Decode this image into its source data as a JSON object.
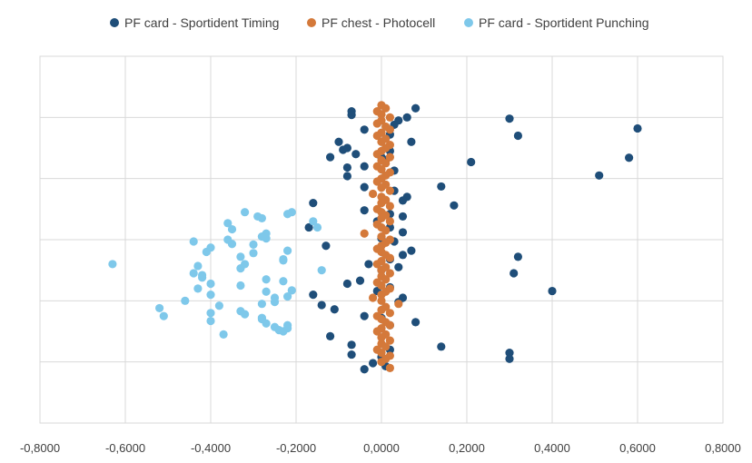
{
  "chart_data": {
    "type": "scatter",
    "xlim": [
      -0.8,
      0.8
    ],
    "ylim": [
      0,
      6
    ],
    "x_ticks": [
      "-0,8000",
      "-0,6000",
      "-0,4000",
      "-0,2000",
      "0,0000",
      "0,2000",
      "0,4000",
      "0,6000",
      "0,8000"
    ],
    "x_tick_values": [
      -0.8,
      -0.6,
      -0.4,
      -0.2,
      0.0,
      0.2,
      0.4,
      0.6,
      0.8
    ],
    "y_grid_values": [
      1,
      2,
      3,
      4,
      5,
      6
    ],
    "show_y_tick_labels": false,
    "grid": true,
    "legend_position": "top",
    "series": [
      {
        "name": "PF card - Sportident Timing",
        "color": "#1f4e79",
        "points": [
          [
            -0.07,
            5.1
          ],
          [
            -0.07,
            5.04
          ],
          [
            0.08,
            5.15
          ],
          [
            0.04,
            4.95
          ],
          [
            0.03,
            4.88
          ],
          [
            0.06,
            5.0
          ],
          [
            0.3,
            4.98
          ],
          [
            0.6,
            4.82
          ],
          [
            0.32,
            4.7
          ],
          [
            -0.04,
            4.8
          ],
          [
            0.02,
            4.72
          ],
          [
            0.07,
            4.6
          ],
          [
            -0.1,
            4.6
          ],
          [
            -0.08,
            4.5
          ],
          [
            -0.09,
            4.47
          ],
          [
            0.02,
            4.45
          ],
          [
            -0.06,
            4.4
          ],
          [
            -0.12,
            4.35
          ],
          [
            0.0,
            4.35
          ],
          [
            0.01,
            4.3
          ],
          [
            0.21,
            4.27
          ],
          [
            0.58,
            4.34
          ],
          [
            -0.04,
            4.2
          ],
          [
            -0.08,
            4.18
          ],
          [
            0.03,
            4.13
          ],
          [
            -0.08,
            4.04
          ],
          [
            0.51,
            4.05
          ],
          [
            0.14,
            3.87
          ],
          [
            -0.04,
            3.86
          ],
          [
            0.03,
            3.8
          ],
          [
            0.06,
            3.7
          ],
          [
            0.05,
            3.64
          ],
          [
            -0.16,
            3.6
          ],
          [
            0.17,
            3.56
          ],
          [
            -0.04,
            3.48
          ],
          [
            0.02,
            3.42
          ],
          [
            0.05,
            3.38
          ],
          [
            -0.01,
            3.3
          ],
          [
            0.02,
            3.2
          ],
          [
            -0.17,
            3.2
          ],
          [
            0.05,
            3.12
          ],
          [
            0.0,
            3.02
          ],
          [
            0.03,
            2.97
          ],
          [
            -0.13,
            2.9
          ],
          [
            0.07,
            2.82
          ],
          [
            0.05,
            2.75
          ],
          [
            0.32,
            2.72
          ],
          [
            0.02,
            2.68
          ],
          [
            -0.03,
            2.6
          ],
          [
            0.04,
            2.55
          ],
          [
            0.0,
            2.5
          ],
          [
            0.31,
            2.45
          ],
          [
            -0.05,
            2.33
          ],
          [
            -0.08,
            2.28
          ],
          [
            0.02,
            2.22
          ],
          [
            -0.01,
            2.16
          ],
          [
            0.4,
            2.16
          ],
          [
            -0.16,
            2.1
          ],
          [
            0.05,
            2.05
          ],
          [
            0.04,
            1.98
          ],
          [
            -0.14,
            1.93
          ],
          [
            -0.11,
            1.86
          ],
          [
            -0.04,
            1.75
          ],
          [
            0.0,
            1.72
          ],
          [
            0.08,
            1.65
          ],
          [
            0.02,
            1.6
          ],
          [
            -0.12,
            1.42
          ],
          [
            -0.07,
            1.28
          ],
          [
            0.14,
            1.25
          ],
          [
            0.02,
            1.2
          ],
          [
            0.3,
            1.15
          ],
          [
            0.3,
            1.05
          ],
          [
            -0.07,
            1.12
          ],
          [
            0.0,
            1.08
          ],
          [
            -0.02,
            0.98
          ],
          [
            0.01,
            0.93
          ],
          [
            -0.04,
            0.88
          ]
        ]
      },
      {
        "name": "PF chest - Photocell",
        "color": "#d4793a",
        "points": [
          [
            0.0,
            5.2
          ],
          [
            0.01,
            5.15
          ],
          [
            -0.01,
            5.1
          ],
          [
            0.0,
            5.05
          ],
          [
            0.02,
            5.0
          ],
          [
            0.0,
            4.95
          ],
          [
            -0.01,
            4.9
          ],
          [
            0.01,
            4.85
          ],
          [
            0.02,
            4.8
          ],
          [
            0.0,
            4.75
          ],
          [
            -0.01,
            4.7
          ],
          [
            0.01,
            4.65
          ],
          [
            0.0,
            4.6
          ],
          [
            0.02,
            4.55
          ],
          [
            0.01,
            4.5
          ],
          [
            0.0,
            4.45
          ],
          [
            -0.01,
            4.4
          ],
          [
            0.02,
            4.35
          ],
          [
            0.0,
            4.3
          ],
          [
            0.01,
            4.25
          ],
          [
            -0.01,
            4.2
          ],
          [
            0.0,
            4.15
          ],
          [
            0.02,
            4.1
          ],
          [
            0.01,
            4.05
          ],
          [
            0.0,
            4.0
          ],
          [
            -0.01,
            3.95
          ],
          [
            0.01,
            3.9
          ],
          [
            0.0,
            3.85
          ],
          [
            0.02,
            3.8
          ],
          [
            -0.02,
            3.75
          ],
          [
            0.0,
            3.7
          ],
          [
            0.01,
            3.65
          ],
          [
            0.0,
            3.6
          ],
          [
            0.02,
            3.55
          ],
          [
            -0.01,
            3.5
          ],
          [
            0.0,
            3.45
          ],
          [
            0.01,
            3.4
          ],
          [
            0.0,
            3.35
          ],
          [
            0.02,
            3.3
          ],
          [
            -0.01,
            3.25
          ],
          [
            0.0,
            3.2
          ],
          [
            0.01,
            3.15
          ],
          [
            -0.04,
            3.1
          ],
          [
            0.0,
            3.05
          ],
          [
            0.02,
            3.0
          ],
          [
            0.01,
            2.95
          ],
          [
            0.0,
            2.9
          ],
          [
            -0.01,
            2.85
          ],
          [
            0.0,
            2.8
          ],
          [
            0.01,
            2.75
          ],
          [
            0.02,
            2.7
          ],
          [
            0.0,
            2.65
          ],
          [
            -0.01,
            2.6
          ],
          [
            0.01,
            2.55
          ],
          [
            0.0,
            2.5
          ],
          [
            0.02,
            2.45
          ],
          [
            0.0,
            2.4
          ],
          [
            0.01,
            2.35
          ],
          [
            -0.01,
            2.3
          ],
          [
            0.0,
            2.25
          ],
          [
            0.02,
            2.2
          ],
          [
            0.01,
            2.15
          ],
          [
            0.0,
            2.1
          ],
          [
            -0.02,
            2.05
          ],
          [
            0.0,
            2.0
          ],
          [
            0.04,
            1.95
          ],
          [
            0.01,
            1.9
          ],
          [
            0.0,
            1.85
          ],
          [
            0.02,
            1.8
          ],
          [
            -0.01,
            1.75
          ],
          [
            0.0,
            1.7
          ],
          [
            0.01,
            1.65
          ],
          [
            0.02,
            1.6
          ],
          [
            0.0,
            1.55
          ],
          [
            -0.01,
            1.5
          ],
          [
            0.01,
            1.45
          ],
          [
            0.0,
            1.4
          ],
          [
            0.02,
            1.35
          ],
          [
            0.0,
            1.3
          ],
          [
            0.01,
            1.25
          ],
          [
            -0.01,
            1.2
          ],
          [
            0.0,
            1.15
          ],
          [
            0.02,
            1.1
          ],
          [
            0.01,
            1.05
          ],
          [
            0.0,
            1.0
          ],
          [
            0.02,
            0.9
          ]
        ]
      },
      {
        "name": "PF card - Sportident Punching",
        "color": "#7ec8ea",
        "points": [
          [
            -0.32,
            3.45
          ],
          [
            -0.29,
            3.38
          ],
          [
            -0.28,
            3.35
          ],
          [
            -0.21,
            3.45
          ],
          [
            -0.22,
            3.42
          ],
          [
            -0.36,
            3.27
          ],
          [
            -0.16,
            3.3
          ],
          [
            -0.35,
            3.17
          ],
          [
            -0.15,
            3.2
          ],
          [
            -0.27,
            3.1
          ],
          [
            -0.28,
            3.05
          ],
          [
            -0.27,
            3.02
          ],
          [
            -0.36,
            3.0
          ],
          [
            -0.44,
            2.97
          ],
          [
            -0.35,
            2.93
          ],
          [
            -0.3,
            2.92
          ],
          [
            -0.4,
            2.87
          ],
          [
            -0.22,
            2.82
          ],
          [
            -0.41,
            2.8
          ],
          [
            -0.3,
            2.78
          ],
          [
            -0.33,
            2.72
          ],
          [
            -0.23,
            2.68
          ],
          [
            -0.23,
            2.66
          ],
          [
            -0.32,
            2.6
          ],
          [
            -0.63,
            2.6
          ],
          [
            -0.43,
            2.57
          ],
          [
            -0.33,
            2.53
          ],
          [
            -0.14,
            2.5
          ],
          [
            -0.44,
            2.45
          ],
          [
            -0.42,
            2.42
          ],
          [
            -0.42,
            2.38
          ],
          [
            -0.27,
            2.35
          ],
          [
            -0.23,
            2.32
          ],
          [
            -0.4,
            2.28
          ],
          [
            -0.33,
            2.25
          ],
          [
            -0.43,
            2.2
          ],
          [
            -0.21,
            2.17
          ],
          [
            -0.27,
            2.15
          ],
          [
            -0.4,
            2.1
          ],
          [
            -0.22,
            2.07
          ],
          [
            -0.25,
            2.05
          ],
          [
            -0.46,
            2.0
          ],
          [
            -0.25,
            1.98
          ],
          [
            -0.28,
            1.95
          ],
          [
            -0.38,
            1.92
          ],
          [
            -0.52,
            1.88
          ],
          [
            -0.33,
            1.83
          ],
          [
            -0.4,
            1.8
          ],
          [
            -0.32,
            1.78
          ],
          [
            -0.51,
            1.75
          ],
          [
            -0.28,
            1.72
          ],
          [
            -0.28,
            1.7
          ],
          [
            -0.4,
            1.67
          ],
          [
            -0.27,
            1.63
          ],
          [
            -0.22,
            1.6
          ],
          [
            -0.25,
            1.57
          ],
          [
            -0.22,
            1.55
          ],
          [
            -0.24,
            1.52
          ],
          [
            -0.23,
            1.5
          ],
          [
            -0.37,
            1.45
          ]
        ]
      }
    ]
  }
}
